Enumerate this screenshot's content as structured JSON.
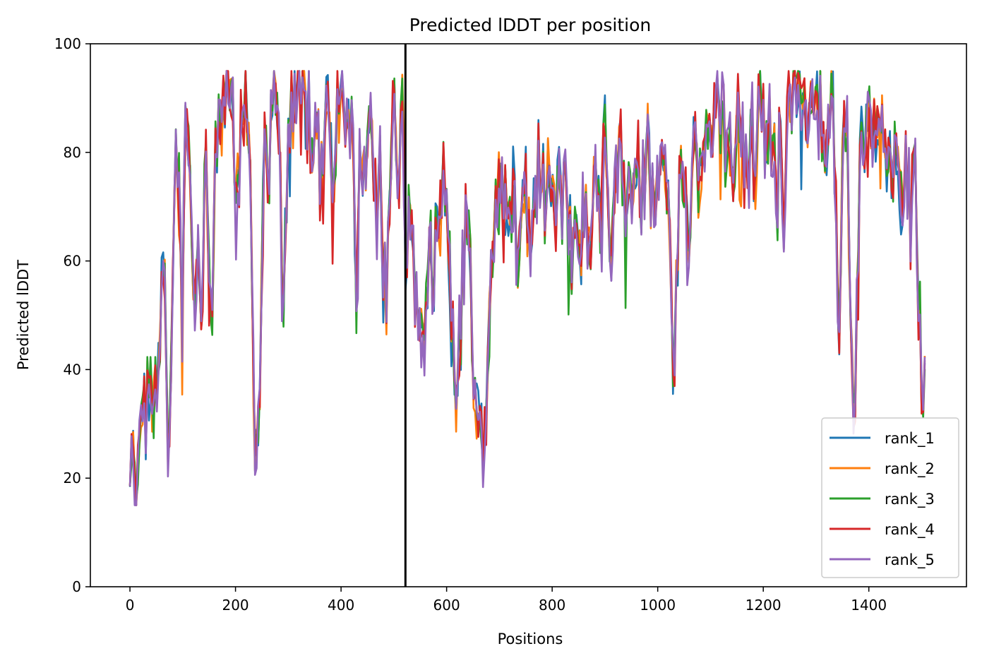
{
  "chart_data": {
    "type": "line",
    "title": "Predicted lDDT per position",
    "xlabel": "Positions",
    "ylabel": "Predicted lDDT",
    "xlim": [
      -75,
      1585
    ],
    "ylim": [
      0,
      100
    ],
    "xticks": [
      0,
      200,
      400,
      600,
      800,
      1000,
      1200,
      1400
    ],
    "yticks": [
      0,
      20,
      40,
      60,
      80,
      100
    ],
    "grid": false,
    "legend_position": "lower-right",
    "vline_x": 522,
    "vline_color": "#000000",
    "x_max": 1508,
    "x_step": 3,
    "base_profile": [
      [
        0,
        19
      ],
      [
        6,
        22
      ],
      [
        12,
        19
      ],
      [
        18,
        23
      ],
      [
        25,
        30
      ],
      [
        32,
        34
      ],
      [
        38,
        34
      ],
      [
        45,
        40
      ],
      [
        52,
        35
      ],
      [
        58,
        48
      ],
      [
        62,
        57
      ],
      [
        66,
        50
      ],
      [
        70,
        30
      ],
      [
        74,
        25
      ],
      [
        80,
        45
      ],
      [
        84,
        72
      ],
      [
        88,
        82
      ],
      [
        92,
        76
      ],
      [
        96,
        60
      ],
      [
        100,
        47
      ],
      [
        105,
        86
      ],
      [
        110,
        86
      ],
      [
        114,
        76
      ],
      [
        118,
        52
      ],
      [
        122,
        43
      ],
      [
        128,
        60
      ],
      [
        134,
        55
      ],
      [
        138,
        52
      ],
      [
        142,
        80
      ],
      [
        146,
        73
      ],
      [
        152,
        58
      ],
      [
        156,
        53
      ],
      [
        160,
        72
      ],
      [
        166,
        84
      ],
      [
        172,
        87
      ],
      [
        178,
        87
      ],
      [
        184,
        90
      ],
      [
        190,
        89
      ],
      [
        196,
        84
      ],
      [
        202,
        66
      ],
      [
        208,
        80
      ],
      [
        214,
        88
      ],
      [
        220,
        89
      ],
      [
        226,
        84
      ],
      [
        232,
        50
      ],
      [
        236,
        31
      ],
      [
        242,
        28
      ],
      [
        248,
        45
      ],
      [
        252,
        72
      ],
      [
        256,
        80
      ],
      [
        262,
        70
      ],
      [
        268,
        88
      ],
      [
        274,
        92
      ],
      [
        280,
        90
      ],
      [
        286,
        72
      ],
      [
        290,
        52
      ],
      [
        294,
        62
      ],
      [
        300,
        80
      ],
      [
        306,
        88
      ],
      [
        312,
        91
      ],
      [
        318,
        92
      ],
      [
        324,
        90
      ],
      [
        330,
        93
      ],
      [
        336,
        88
      ],
      [
        342,
        84
      ],
      [
        348,
        80
      ],
      [
        354,
        87
      ],
      [
        360,
        72
      ],
      [
        366,
        77
      ],
      [
        372,
        86
      ],
      [
        378,
        84
      ],
      [
        384,
        72
      ],
      [
        390,
        86
      ],
      [
        396,
        89
      ],
      [
        402,
        91
      ],
      [
        408,
        87
      ],
      [
        414,
        90
      ],
      [
        420,
        86
      ],
      [
        426,
        72
      ],
      [
        430,
        50
      ],
      [
        434,
        84
      ],
      [
        440,
        80
      ],
      [
        446,
        70
      ],
      [
        450,
        85
      ],
      [
        456,
        88
      ],
      [
        462,
        78
      ],
      [
        468,
        66
      ],
      [
        474,
        80
      ],
      [
        480,
        60
      ],
      [
        486,
        50
      ],
      [
        490,
        65
      ],
      [
        496,
        84
      ],
      [
        502,
        88
      ],
      [
        508,
        68
      ],
      [
        514,
        90
      ],
      [
        518,
        92
      ],
      [
        522,
        52
      ],
      [
        526,
        64
      ],
      [
        532,
        66
      ],
      [
        538,
        60
      ],
      [
        544,
        45
      ],
      [
        550,
        56
      ],
      [
        556,
        40
      ],
      [
        562,
        56
      ],
      [
        568,
        65
      ],
      [
        574,
        52
      ],
      [
        580,
        65
      ],
      [
        586,
        70
      ],
      [
        592,
        77
      ],
      [
        598,
        70
      ],
      [
        604,
        60
      ],
      [
        610,
        50
      ],
      [
        616,
        30
      ],
      [
        622,
        40
      ],
      [
        628,
        52
      ],
      [
        634,
        63
      ],
      [
        640,
        70
      ],
      [
        646,
        55
      ],
      [
        650,
        35
      ],
      [
        656,
        32
      ],
      [
        662,
        30
      ],
      [
        668,
        27
      ],
      [
        674,
        30
      ],
      [
        680,
        45
      ],
      [
        686,
        62
      ],
      [
        692,
        70
      ],
      [
        698,
        80
      ],
      [
        704,
        68
      ],
      [
        710,
        70
      ],
      [
        716,
        75
      ],
      [
        722,
        68
      ],
      [
        728,
        78
      ],
      [
        734,
        60
      ],
      [
        740,
        65
      ],
      [
        746,
        75
      ],
      [
        752,
        70
      ],
      [
        758,
        63
      ],
      [
        764,
        75
      ],
      [
        770,
        68
      ],
      [
        776,
        80
      ],
      [
        782,
        76
      ],
      [
        788,
        70
      ],
      [
        794,
        80
      ],
      [
        800,
        72
      ],
      [
        806,
        66
      ],
      [
        812,
        74
      ],
      [
        818,
        66
      ],
      [
        824,
        77
      ],
      [
        830,
        68
      ],
      [
        836,
        58
      ],
      [
        842,
        74
      ],
      [
        848,
        70
      ],
      [
        854,
        62
      ],
      [
        860,
        75
      ],
      [
        866,
        68
      ],
      [
        872,
        54
      ],
      [
        878,
        72
      ],
      [
        884,
        78
      ],
      [
        890,
        68
      ],
      [
        896,
        76
      ],
      [
        902,
        82
      ],
      [
        908,
        70
      ],
      [
        914,
        58
      ],
      [
        920,
        75
      ],
      [
        926,
        82
      ],
      [
        932,
        78
      ],
      [
        938,
        70
      ],
      [
        944,
        80
      ],
      [
        950,
        74
      ],
      [
        956,
        66
      ],
      [
        962,
        80
      ],
      [
        968,
        70
      ],
      [
        974,
        76
      ],
      [
        980,
        82
      ],
      [
        986,
        74
      ],
      [
        992,
        68
      ],
      [
        998,
        80
      ],
      [
        1004,
        72
      ],
      [
        1010,
        80
      ],
      [
        1016,
        70
      ],
      [
        1022,
        62
      ],
      [
        1026,
        48
      ],
      [
        1030,
        36
      ],
      [
        1034,
        48
      ],
      [
        1040,
        72
      ],
      [
        1046,
        80
      ],
      [
        1052,
        72
      ],
      [
        1058,
        62
      ],
      [
        1064,
        78
      ],
      [
        1070,
        84
      ],
      [
        1076,
        74
      ],
      [
        1082,
        80
      ],
      [
        1088,
        86
      ],
      [
        1094,
        80
      ],
      [
        1100,
        88
      ],
      [
        1106,
        84
      ],
      [
        1112,
        90
      ],
      [
        1118,
        82
      ],
      [
        1124,
        88
      ],
      [
        1130,
        80
      ],
      [
        1136,
        86
      ],
      [
        1142,
        76
      ],
      [
        1148,
        84
      ],
      [
        1154,
        88
      ],
      [
        1160,
        80
      ],
      [
        1166,
        86
      ],
      [
        1172,
        78
      ],
      [
        1178,
        86
      ],
      [
        1184,
        80
      ],
      [
        1190,
        86
      ],
      [
        1196,
        88
      ],
      [
        1202,
        82
      ],
      [
        1208,
        86
      ],
      [
        1214,
        84
      ],
      [
        1220,
        80
      ],
      [
        1226,
        62
      ],
      [
        1232,
        86
      ],
      [
        1238,
        60
      ],
      [
        1244,
        88
      ],
      [
        1250,
        89
      ],
      [
        1256,
        87
      ],
      [
        1262,
        88
      ],
      [
        1268,
        90
      ],
      [
        1274,
        86
      ],
      [
        1280,
        88
      ],
      [
        1286,
        84
      ],
      [
        1292,
        90
      ],
      [
        1298,
        88
      ],
      [
        1304,
        84
      ],
      [
        1310,
        89
      ],
      [
        1316,
        84
      ],
      [
        1322,
        86
      ],
      [
        1328,
        88
      ],
      [
        1334,
        84
      ],
      [
        1340,
        62
      ],
      [
        1344,
        52
      ],
      [
        1348,
        70
      ],
      [
        1354,
        84
      ],
      [
        1360,
        82
      ],
      [
        1364,
        50
      ],
      [
        1368,
        38
      ],
      [
        1372,
        34
      ],
      [
        1378,
        55
      ],
      [
        1384,
        80
      ],
      [
        1390,
        86
      ],
      [
        1396,
        80
      ],
      [
        1402,
        84
      ],
      [
        1408,
        86
      ],
      [
        1414,
        82
      ],
      [
        1420,
        80
      ],
      [
        1426,
        86
      ],
      [
        1432,
        82
      ],
      [
        1438,
        84
      ],
      [
        1444,
        78
      ],
      [
        1450,
        86
      ],
      [
        1456,
        80
      ],
      [
        1462,
        72
      ],
      [
        1468,
        80
      ],
      [
        1474,
        75
      ],
      [
        1480,
        65
      ],
      [
        1486,
        80
      ],
      [
        1490,
        70
      ],
      [
        1494,
        52
      ],
      [
        1498,
        44
      ],
      [
        1502,
        34
      ],
      [
        1505,
        38
      ],
      [
        1508,
        40
      ]
    ],
    "series": [
      {
        "name": "rank_1",
        "color": "#1f77b4",
        "seed": 11,
        "noise": 9
      },
      {
        "name": "rank_2",
        "color": "#ff7f0e",
        "seed": 23,
        "noise": 8
      },
      {
        "name": "rank_3",
        "color": "#2ca02c",
        "seed": 37,
        "noise": 8
      },
      {
        "name": "rank_4",
        "color": "#d62728",
        "seed": 51,
        "noise": 9
      },
      {
        "name": "rank_5",
        "color": "#9467bd",
        "seed": 67,
        "noise": 9
      }
    ]
  }
}
